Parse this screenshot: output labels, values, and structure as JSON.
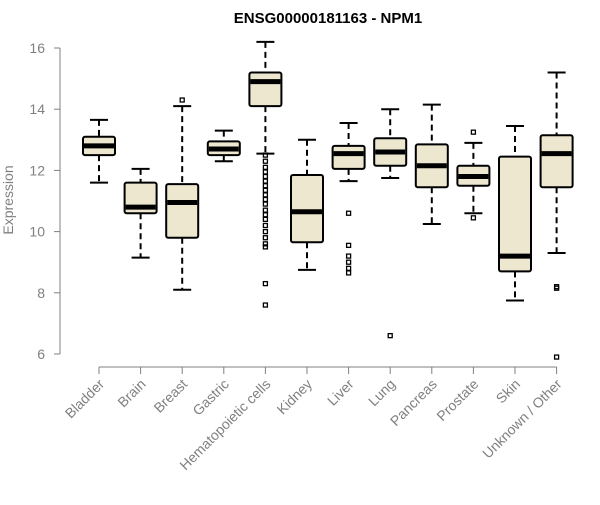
{
  "chart_data": {
    "type": "boxplot",
    "title": "ENSG00000181163 - NPM1",
    "ylabel": "Expression",
    "xlabel": "",
    "ylim": [
      6,
      16.4
    ],
    "yticks": [
      6,
      8,
      10,
      12,
      14,
      16
    ],
    "grid": false,
    "colors": {
      "box_fill": "#ede7cf",
      "box_stroke": "#000000",
      "axis": "#808080"
    },
    "categories": [
      "Bladder",
      "Brain",
      "Breast",
      "Gastric",
      "Hematopoietic cells",
      "Kidney",
      "Liver",
      "Lung",
      "Pancreas",
      "Prostate",
      "Skin",
      "Unknown / Other"
    ],
    "boxes": [
      {
        "name": "Bladder",
        "min": 11.6,
        "q1": 12.5,
        "median": 12.8,
        "q3": 13.1,
        "max": 13.65,
        "outliers": []
      },
      {
        "name": "Brain",
        "min": 9.15,
        "q1": 10.6,
        "median": 10.8,
        "q3": 11.6,
        "max": 12.05,
        "outliers": []
      },
      {
        "name": "Breast",
        "min": 8.1,
        "q1": 9.8,
        "median": 10.95,
        "q3": 11.55,
        "max": 14.1,
        "outliers": [
          14.3
        ]
      },
      {
        "name": "Gastric",
        "min": 12.3,
        "q1": 12.5,
        "median": 12.7,
        "q3": 12.95,
        "max": 13.3,
        "outliers": []
      },
      {
        "name": "Hematopoietic cells",
        "min": 12.55,
        "q1": 14.1,
        "median": 14.9,
        "q3": 15.2,
        "max": 16.2,
        "outliers": [
          12.5,
          12.3,
          12.1,
          11.95,
          11.8,
          11.65,
          11.5,
          11.35,
          11.2,
          11.05,
          10.9,
          10.7,
          10.55,
          10.4,
          10.2,
          10.0,
          9.8,
          9.6,
          9.5,
          8.3,
          7.6
        ]
      },
      {
        "name": "Kidney",
        "min": 8.75,
        "q1": 9.65,
        "median": 10.65,
        "q3": 11.85,
        "max": 13.0,
        "outliers": []
      },
      {
        "name": "Liver",
        "min": 11.65,
        "q1": 12.05,
        "median": 12.55,
        "q3": 12.8,
        "max": 13.55,
        "outliers": [
          10.6,
          9.55,
          9.2,
          9.0,
          8.8,
          8.65
        ]
      },
      {
        "name": "Lung",
        "min": 11.75,
        "q1": 12.15,
        "median": 12.6,
        "q3": 13.05,
        "max": 14.0,
        "outliers": [
          6.6
        ]
      },
      {
        "name": "Pancreas",
        "min": 10.25,
        "q1": 11.45,
        "median": 12.15,
        "q3": 12.85,
        "max": 14.15,
        "outliers": []
      },
      {
        "name": "Prostate",
        "min": 10.6,
        "q1": 11.5,
        "median": 11.8,
        "q3": 12.15,
        "max": 12.9,
        "outliers": [
          13.25,
          10.45
        ]
      },
      {
        "name": "Skin",
        "min": 7.75,
        "q1": 8.7,
        "median": 9.2,
        "q3": 12.45,
        "max": 13.45,
        "outliers": []
      },
      {
        "name": "Unknown / Other",
        "min": 9.3,
        "q1": 11.45,
        "median": 12.55,
        "q3": 13.15,
        "max": 15.2,
        "outliers": [
          8.2,
          8.15,
          5.9
        ]
      }
    ]
  }
}
